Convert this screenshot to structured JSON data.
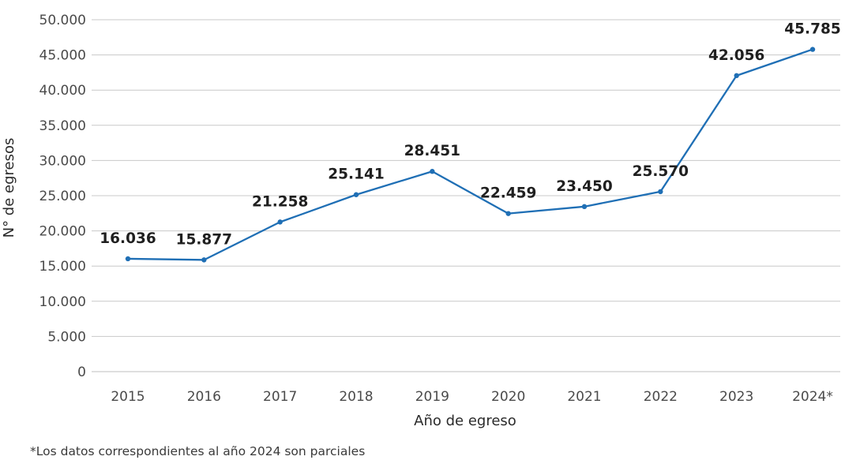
{
  "chart_data": {
    "type": "line",
    "title": "",
    "xlabel": "Año de egreso",
    "ylabel": "N° de egresos",
    "categories": [
      "2015",
      "2016",
      "2017",
      "2018",
      "2019",
      "2020",
      "2021",
      "2022",
      "2023",
      "2024*"
    ],
    "series": [
      {
        "values": [
          16036,
          15877,
          21258,
          25141,
          28451,
          22459,
          23450,
          25570,
          42056,
          45785
        ],
        "color": "#1f6fb5"
      }
    ],
    "data_labels": [
      "16.036",
      "15.877",
      "21.258",
      "25.141",
      "28.451",
      "22.459",
      "23.450",
      "25.570",
      "42.056",
      "45.785"
    ],
    "y_ticks": [
      0,
      5000,
      10000,
      15000,
      20000,
      25000,
      30000,
      35000,
      40000,
      45000,
      50000
    ],
    "y_tick_labels": [
      "0",
      "5.000",
      "10.000",
      "15.000",
      "20.000",
      "25.000",
      "30.000",
      "35.000",
      "40.000",
      "45.000",
      "50.000"
    ],
    "ylim": [
      0,
      50000
    ],
    "grid": true,
    "legend": "none"
  },
  "footnote": "*Los datos correspondientes al año 2024 son parciales"
}
